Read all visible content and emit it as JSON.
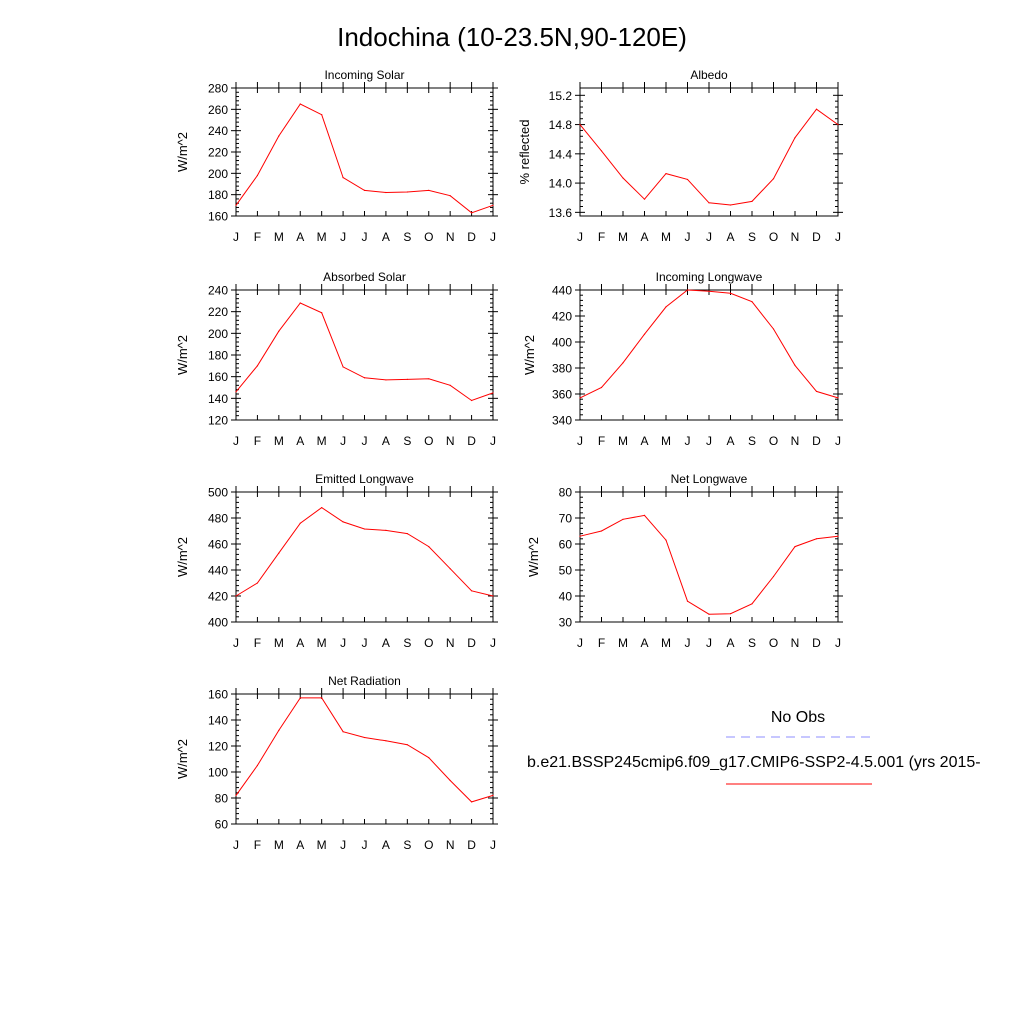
{
  "page_title": "Indochina (10-23.5N,90-120E)",
  "legend": {
    "obs_label": "No Obs",
    "model_label": "b.e21.BSSP245cmip6.f09_g17.CMIP6-SSP2-4.5.001 (yrs 2015-",
    "obs_color": "#8f8fff",
    "model_color": "#ff0000"
  },
  "chart_data": [
    {
      "id": "incoming-solar",
      "type": "line",
      "title": "Incoming Solar",
      "ylabel": "W/m^2",
      "xlabel": "",
      "categories": [
        "J",
        "F",
        "M",
        "A",
        "M",
        "J",
        "J",
        "A",
        "S",
        "O",
        "N",
        "D",
        "J"
      ],
      "ylim": [
        160,
        280
      ],
      "yticks": [
        160,
        180,
        200,
        220,
        240,
        260,
        280
      ],
      "ytick_labels": [
        "160",
        "180",
        "200",
        "220",
        "240",
        "260",
        "280"
      ],
      "series": [
        {
          "values": [
            170,
            198,
            235,
            265,
            255,
            196,
            184,
            182,
            182.5,
            184,
            179,
            163,
            170
          ]
        }
      ]
    },
    {
      "id": "albedo",
      "type": "line",
      "title": "Albedo",
      "ylabel": "% reflected",
      "xlabel": "",
      "categories": [
        "J",
        "F",
        "M",
        "A",
        "M",
        "J",
        "J",
        "A",
        "S",
        "O",
        "N",
        "D",
        "J"
      ],
      "ylim": [
        13.55,
        15.3
      ],
      "yticks": [
        13.6,
        14.0,
        14.4,
        14.8,
        15.2
      ],
      "ytick_labels": [
        "13.6",
        "14.0",
        "14.4",
        "14.8",
        "15.2"
      ],
      "series": [
        {
          "values": [
            14.8,
            14.44,
            14.07,
            13.78,
            14.13,
            14.05,
            13.73,
            13.7,
            13.75,
            14.06,
            14.62,
            15.01,
            14.8
          ]
        }
      ]
    },
    {
      "id": "absorbed-solar",
      "type": "line",
      "title": "Absorbed Solar",
      "ylabel": "W/m^2",
      "xlabel": "",
      "categories": [
        "J",
        "F",
        "M",
        "A",
        "M",
        "J",
        "J",
        "A",
        "S",
        "O",
        "N",
        "D",
        "J"
      ],
      "ylim": [
        120,
        240
      ],
      "yticks": [
        120,
        140,
        160,
        180,
        200,
        220,
        240
      ],
      "ytick_labels": [
        "120",
        "140",
        "160",
        "180",
        "200",
        "220",
        "240"
      ],
      "series": [
        {
          "values": [
            146,
            170,
            202,
            228,
            219,
            169,
            159,
            157,
            157.5,
            158,
            152,
            138,
            145
          ]
        }
      ]
    },
    {
      "id": "incoming-longwave",
      "type": "line",
      "title": "Incoming Longwave",
      "ylabel": "W/m^2",
      "xlabel": "",
      "categories": [
        "J",
        "F",
        "M",
        "A",
        "M",
        "J",
        "J",
        "A",
        "S",
        "O",
        "N",
        "D",
        "J"
      ],
      "ylim": [
        340,
        440
      ],
      "yticks": [
        340,
        360,
        380,
        400,
        420,
        440
      ],
      "ytick_labels": [
        "340",
        "360",
        "380",
        "400",
        "420",
        "440"
      ],
      "series": [
        {
          "values": [
            357,
            365,
            384,
            406,
            427,
            440,
            439,
            437.5,
            431,
            410,
            382,
            362,
            357
          ]
        }
      ]
    },
    {
      "id": "emitted-longwave",
      "type": "line",
      "title": "Emitted Longwave",
      "ylabel": "W/m^2",
      "xlabel": "",
      "categories": [
        "J",
        "F",
        "M",
        "A",
        "M",
        "J",
        "J",
        "A",
        "S",
        "O",
        "N",
        "D",
        "J"
      ],
      "ylim": [
        400,
        500
      ],
      "yticks": [
        400,
        420,
        440,
        460,
        480,
        500
      ],
      "ytick_labels": [
        "400",
        "420",
        "440",
        "460",
        "480",
        "500"
      ],
      "series": [
        {
          "values": [
            420,
            430,
            453,
            476,
            488,
            477,
            471.5,
            470.5,
            468,
            458,
            441,
            424,
            420
          ]
        }
      ]
    },
    {
      "id": "net-longwave",
      "type": "line",
      "title": "Net Longwave",
      "ylabel": "W/m^2",
      "xlabel": "",
      "categories": [
        "J",
        "F",
        "M",
        "A",
        "M",
        "J",
        "J",
        "A",
        "S",
        "O",
        "N",
        "D",
        "J"
      ],
      "ylim": [
        30,
        80
      ],
      "yticks": [
        30,
        40,
        50,
        60,
        70,
        80
      ],
      "ytick_labels": [
        "30",
        "40",
        "50",
        "60",
        "70",
        "80"
      ],
      "series": [
        {
          "values": [
            63,
            65,
            69.5,
            71,
            61.5,
            38,
            33,
            33.2,
            37,
            47.5,
            59,
            62,
            63
          ]
        }
      ]
    },
    {
      "id": "net-radiation",
      "type": "line",
      "title": "Net Radiation",
      "ylabel": "W/m^2",
      "xlabel": "",
      "categories": [
        "J",
        "F",
        "M",
        "A",
        "M",
        "J",
        "J",
        "A",
        "S",
        "O",
        "N",
        "D",
        "J"
      ],
      "ylim": [
        60,
        160
      ],
      "yticks": [
        60,
        80,
        100,
        120,
        140,
        160
      ],
      "ytick_labels": [
        "60",
        "80",
        "100",
        "120",
        "140",
        "160"
      ],
      "series": [
        {
          "values": [
            82,
            105,
            132,
            157,
            157,
            131,
            126.5,
            124,
            121,
            111,
            93.5,
            77,
            82
          ]
        }
      ]
    }
  ]
}
